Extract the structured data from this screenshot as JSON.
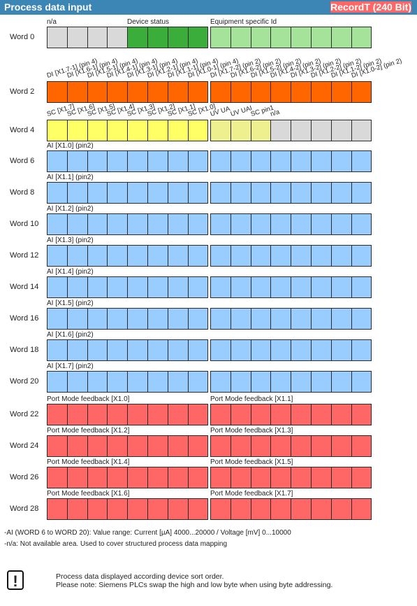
{
  "header": {
    "title": "Process data input",
    "record": "RecordT (240 Bit)"
  },
  "colors": {
    "gray": "#d9d9d9",
    "dark_green": "#3aad3a",
    "light_green": "#a6e39a",
    "orange": "#ff6600",
    "yellow": "#ffff66",
    "light_yellow": "#eef08f",
    "blue": "#99ccff",
    "red": "#ff6666"
  },
  "words": [
    {
      "label": "Word 0",
      "groups": [
        {
          "text": "n/a"
        },
        {
          "text": "Device status"
        },
        {
          "text": "Equipment specific Id"
        }
      ],
      "cells": [
        "g",
        "g",
        "g",
        "g",
        "dg",
        "dg",
        "dg",
        "dg",
        "lg",
        "lg",
        "lg",
        "lg",
        "lg",
        "lg",
        "lg",
        "lg"
      ]
    },
    {
      "label": "Word 2",
      "bit_labels": [
        "DI [X1.7-1] (pin 4)",
        "DI [X1.6-1] (pin 4)",
        "DI [X1.5-1] (pin 4)",
        "DI [X1.4-1] (pin 4)",
        "DI [X1.3-1] (pin 4)",
        "DI [X1.2-1] (pin 4)",
        "DI [X1.1-1] (pin 4)",
        "DI [X1.0-1] (pin 4)",
        "DI [X1.7-2] (pin 2)",
        "DI [X1.6-2] (pin 2)",
        "DI [X1.5-2] (pin 2)",
        "DI [X1.4-2] (pin 2)",
        "DI [X1.3-2] (pin 2)",
        "DI [X1.2-2] (pin 2)",
        "DI [X1.1-2] (pin 2)",
        "DI [X1.0-2] (pin 2)"
      ],
      "cells": [
        "o",
        "o",
        "o",
        "o",
        "o",
        "o",
        "o",
        "o",
        "o",
        "o",
        "o",
        "o",
        "o",
        "o",
        "o",
        "o"
      ]
    },
    {
      "label": "Word 4",
      "bit_labels": [
        "SC [X1.7]",
        "SC [X1.6]",
        "SC [X1.5]",
        "SC [X1.4]",
        "SC [X1.3]",
        "SC [X1.2]",
        "SC [X1.1]",
        "SC [X1.0]",
        "UV UA",
        "UV UAI",
        "SC pin1",
        "n/a"
      ],
      "cells": [
        "y",
        "y",
        "y",
        "y",
        "y",
        "y",
        "y",
        "y",
        "ly",
        "ly",
        "ly",
        "g",
        "g",
        "g",
        "g",
        "g"
      ]
    },
    {
      "label": "Word 6",
      "groups": [
        {
          "text": "AI [X1.0] (pin2)"
        }
      ],
      "cells": "b"
    },
    {
      "label": "Word 8",
      "groups": [
        {
          "text": "AI [X1.1] (pin2)"
        }
      ],
      "cells": "b"
    },
    {
      "label": "Word 10",
      "groups": [
        {
          "text": "AI [X1.2] (pin2)"
        }
      ],
      "cells": "b"
    },
    {
      "label": "Word 12",
      "groups": [
        {
          "text": "AI [X1.3] (pin2)"
        }
      ],
      "cells": "b"
    },
    {
      "label": "Word 14",
      "groups": [
        {
          "text": "AI [X1.4] (pin2)"
        }
      ],
      "cells": "b"
    },
    {
      "label": "Word 16",
      "groups": [
        {
          "text": "AI [X1.5] (pin2)"
        }
      ],
      "cells": "b"
    },
    {
      "label": "Word 18",
      "groups": [
        {
          "text": "AI [X1.6] (pin2)"
        }
      ],
      "cells": "b"
    },
    {
      "label": "Word 20",
      "groups": [
        {
          "text": "AI [X1.7] (pin2)"
        }
      ],
      "cells": "b"
    },
    {
      "label": "Word 22",
      "groups": [
        {
          "text": "Port Mode feedback [X1.0]"
        },
        {
          "text": "Port Mode feedback [X1.1]"
        }
      ],
      "cells": "r"
    },
    {
      "label": "Word 24",
      "groups": [
        {
          "text": "Port Mode feedback [X1.2]"
        },
        {
          "text": "Port Mode feedback [X1.3]"
        }
      ],
      "cells": "r"
    },
    {
      "label": "Word 26",
      "groups": [
        {
          "text": "Port Mode feedback [X1.4]"
        },
        {
          "text": "Port Mode feedback [X1.5]"
        }
      ],
      "cells": "r"
    },
    {
      "label": "Word 28",
      "groups": [
        {
          "text": "Port Mode feedback [X1.6]"
        },
        {
          "text": "Port Mode feedback [X1.7]"
        }
      ],
      "cells": "r"
    }
  ],
  "notes": [
    "-AI (WORD 6 to WORD 20): Value range:  Current [µA] 4000...20000  /  Voltage [mV] 0...10000",
    "-n/a: Not available area. Used to cover structured process data mapping"
  ],
  "warning": {
    "icon": "exclamation-icon",
    "lines": [
      "Process data displayed according device sort order.",
      "Please note: Siemens PLCs swap the high and low byte when using byte addressing."
    ]
  }
}
